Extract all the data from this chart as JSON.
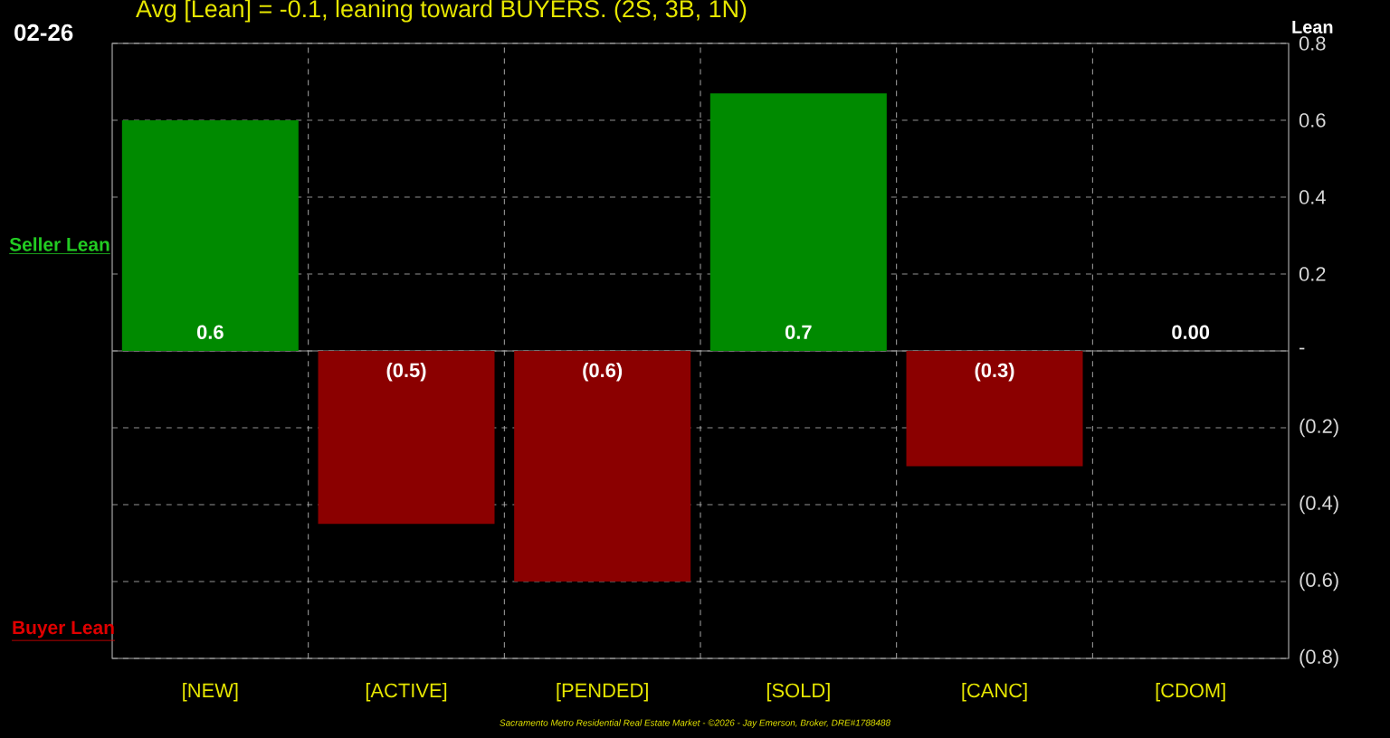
{
  "chart_data": {
    "type": "bar",
    "title": "Avg [Lean] = -0.1, leaning toward BUYERS. (2S, 3B, 1N)",
    "ylabel": "Lean",
    "categories": [
      "[NEW]",
      "[ACTIVE]",
      "[PENDED]",
      "[SOLD]",
      "[CANC]",
      "[CDOM]"
    ],
    "values": [
      0.6,
      -0.45,
      -0.6,
      0.67,
      -0.3,
      0
    ],
    "value_labels": [
      "0.6",
      "(0.5)",
      "(0.6)",
      "0.7",
      "(0.3)",
      "0.00"
    ],
    "colors": [
      "#008a00",
      "#8b0000",
      "#8b0000",
      "#008a00",
      "#8b0000",
      "#008a00"
    ],
    "ylim": [
      -0.8,
      0.8
    ],
    "yticks": [
      {
        "value": -0.8,
        "label": "(0.8)"
      },
      {
        "value": -0.6,
        "label": "(0.6)"
      },
      {
        "value": -0.4,
        "label": "(0.4)"
      },
      {
        "value": -0.2,
        "label": "(0.2)"
      },
      {
        "value": 0,
        "label": "-"
      },
      0.2,
      0.4,
      0.6,
      0.8
    ],
    "grid": true,
    "annotations": [
      "02-26",
      "Seller Lean",
      "Buyer Lean",
      "Sacramento Metro Residential Real Estate Market - ©2026 - Jay Emerson, Broker, DRE#1788488"
    ]
  }
}
